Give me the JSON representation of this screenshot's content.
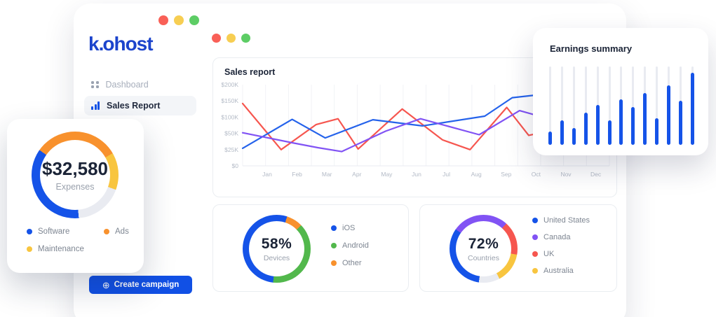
{
  "colors": {
    "brand_blue": "#1c44cc",
    "primary_blue": "#1553e8",
    "line_blue": "#2563eb",
    "line_red": "#f6564f",
    "line_purple": "#8153f4",
    "orange": "#f8912d",
    "yellow": "#f8c53f",
    "green": "#52b84c",
    "track_gray": "#e9ebf1",
    "traffic_red": "#f96057",
    "traffic_yellow": "#f7ce52",
    "traffic_green": "#5dcd65"
  },
  "window": {
    "logo_first": "k",
    "logo_dot": ".",
    "logo_rest": "ohost",
    "traffic_dots": [
      "close",
      "minimize",
      "zoom"
    ]
  },
  "sidebar": {
    "items": [
      {
        "label": "Dashboard",
        "active": false
      },
      {
        "label": "Sales Report",
        "active": true
      }
    ],
    "cta_label": "Create campaign",
    "cta_icon": "plus-circle"
  },
  "sales": {
    "title": "Sales report",
    "chart": {
      "type": "line",
      "x_labels": [
        "Jan",
        "Feb",
        "Mar",
        "Apr",
        "May",
        "Jun",
        "Jul",
        "Aug",
        "Sep",
        "Oct",
        "Nov",
        "Dec"
      ],
      "y_tick_labels": [
        "$200K",
        "$150K",
        "$100K",
        "$50K",
        "$25K",
        "$0"
      ],
      "y_scale_k": [
        0,
        25,
        50,
        100,
        150,
        200
      ],
      "grid": "vertical",
      "series": [
        {
          "name": "red",
          "color": "#f6564f",
          "points": [
            [
              0,
              142
            ],
            [
              10.5,
              25
            ],
            [
              20,
              77
            ],
            [
              26,
              95
            ],
            [
              31.5,
              26
            ],
            [
              43.5,
              125
            ],
            [
              54.5,
              40
            ],
            [
              62,
              25
            ],
            [
              72,
              130
            ],
            [
              78,
              47
            ],
            [
              84,
              58
            ]
          ]
        },
        {
          "name": "blue",
          "color": "#2563eb",
          "points": [
            [
              0,
              27
            ],
            [
              13.5,
              93
            ],
            [
              22.5,
              43
            ],
            [
              35.5,
              92
            ],
            [
              49,
              73
            ],
            [
              66,
              103
            ],
            [
              73.5,
              160
            ],
            [
              80,
              168
            ],
            [
              88,
              170
            ]
          ]
        },
        {
          "name": "purple",
          "color": "#8153f4",
          "points": [
            [
              0,
              52
            ],
            [
              14,
              35
            ],
            [
              20.5,
              28
            ],
            [
              27,
              22
            ],
            [
              39,
              57
            ],
            [
              48.5,
              95
            ],
            [
              64.5,
              48
            ],
            [
              75.5,
              120
            ],
            [
              80,
              106
            ],
            [
              88,
              96
            ]
          ]
        }
      ]
    }
  },
  "earnings": {
    "title": "Earnings summary",
    "chart": {
      "type": "bar",
      "values_pct": [
        17,
        31,
        21,
        41,
        51,
        31,
        58,
        48,
        66,
        34,
        76,
        56,
        92
      ],
      "bar_color": "#1553e8",
      "track_color": "#e9ebf1"
    }
  },
  "expenses": {
    "value": "$32,580",
    "label": "Expenses",
    "chart": {
      "type": "donut",
      "segments": [
        {
          "color": "#f8912d",
          "from": 0,
          "to": 60
        },
        {
          "color": "#f8c53f",
          "from": 60,
          "to": 110
        },
        {
          "color": "#e9ebf1",
          "from": 110,
          "to": 175
        },
        {
          "color": "#1553e8",
          "from": 175,
          "to": 305
        },
        {
          "color": "#f8912d",
          "from": 305,
          "to": 360
        }
      ]
    },
    "legend": [
      {
        "label": "Software",
        "color": "#1553e8"
      },
      {
        "label": "Ads",
        "color": "#f8912d"
      },
      {
        "label": "Maintenance",
        "color": "#f8c53f"
      }
    ]
  },
  "devices": {
    "value": "58%",
    "label": "Devices",
    "chart": {
      "type": "donut",
      "segments": [
        {
          "color": "#1553e8",
          "from": 0,
          "to": 18
        },
        {
          "color": "#f8912d",
          "from": 18,
          "to": 46
        },
        {
          "color": "#52b84c",
          "from": 46,
          "to": 186
        },
        {
          "color": "#1553e8",
          "from": 186,
          "to": 360
        }
      ]
    },
    "legend": [
      {
        "label": "iOS",
        "color": "#1553e8"
      },
      {
        "label": "Android",
        "color": "#52b84c"
      },
      {
        "label": "Other",
        "color": "#f8912d"
      }
    ]
  },
  "countries": {
    "value": "72%",
    "label": "Countries",
    "chart": {
      "type": "donut",
      "segments": [
        {
          "color": "#8153f4",
          "from": 0,
          "to": 42
        },
        {
          "color": "#f6564f",
          "from": 42,
          "to": 100
        },
        {
          "color": "#f8c53f",
          "from": 100,
          "to": 152
        },
        {
          "color": "#e9ebf1",
          "from": 152,
          "to": 188
        },
        {
          "color": "#1553e8",
          "from": 188,
          "to": 305
        },
        {
          "color": "#8153f4",
          "from": 305,
          "to": 360
        }
      ]
    },
    "legend": [
      {
        "label": "United States",
        "color": "#1553e8"
      },
      {
        "label": "Canada",
        "color": "#8153f4"
      },
      {
        "label": "UK",
        "color": "#f6564f"
      },
      {
        "label": "Australia",
        "color": "#f8c53f"
      }
    ]
  }
}
